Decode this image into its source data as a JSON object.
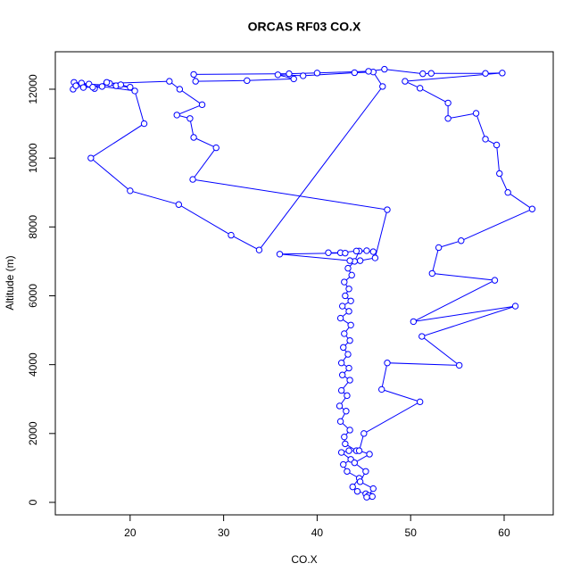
{
  "chart_data": {
    "type": "scatter",
    "title": "ORCAS RF03 CO.X",
    "xlabel": "CO.X",
    "ylabel": "Altitude (m)",
    "color": "#0000ff",
    "lines": true,
    "xlim": [
      12,
      65.25
    ],
    "ylim": [
      -363,
      13088
    ],
    "xticks": [
      20,
      30,
      40,
      50,
      60
    ],
    "yticks": [
      0,
      2000,
      4000,
      6000,
      8000,
      10000,
      12000
    ],
    "x": [
      45.8,
      45.2,
      44.3,
      43.8,
      44.5,
      43.2,
      42.8,
      43.6,
      42.6,
      43.4,
      44.2,
      43.0,
      42.9,
      43.5,
      42.5,
      43.1,
      42.4,
      43.2,
      42.6,
      43.5,
      42.7,
      43.4,
      42.6,
      43.3,
      42.8,
      43.5,
      42.9,
      43.6,
      42.5,
      43.4,
      42.7,
      43.6,
      43.0,
      43.4,
      42.9,
      43.7,
      43.3,
      44.0,
      44.5,
      45.3,
      46.0,
      44.2,
      42.5,
      41.2,
      43.0,
      36.0,
      43.5,
      44.6,
      46.2,
      47.5,
      26.7,
      29.2,
      26.8,
      26.4,
      25.0,
      27.7,
      25.3,
      24.2,
      17.8,
      16.2,
      14.0,
      15.6,
      18.5,
      20.0,
      19.0,
      17.5,
      16.0,
      14.8,
      13.9,
      14.2,
      15.0,
      17.0,
      20.5,
      21.5,
      15.8,
      20.0,
      25.2,
      30.8,
      33.8,
      47.0,
      46.0,
      44.0,
      38.5,
      35.8,
      37.5,
      32.5,
      27.0,
      26.8,
      37.0,
      40.0,
      45.5,
      47.2,
      51.3,
      52.2,
      58.0,
      59.8,
      49.4,
      51.0,
      54.0,
      54.0,
      57.0,
      58.0,
      59.2,
      59.5,
      60.4,
      63.0,
      55.4,
      53.0,
      52.3,
      59.0,
      50.3,
      61.2,
      51.2,
      55.2,
      47.5,
      46.9,
      51.0,
      45.0,
      44.5,
      45.6,
      44.0,
      45.2,
      44.6,
      46.0,
      45.5,
      45.9,
      45.3
    ],
    "values": [
      180,
      250,
      320,
      450,
      700,
      900,
      1100,
      1250,
      1450,
      1500,
      1500,
      1700,
      1900,
      2100,
      2350,
      2650,
      2800,
      3100,
      3250,
      3550,
      3700,
      3900,
      4050,
      4300,
      4500,
      4700,
      4900,
      5150,
      5350,
      5550,
      5700,
      5850,
      6000,
      6200,
      6400,
      6600,
      6800,
      7000,
      7300,
      7310,
      7280,
      7300,
      7250,
      7250,
      7240,
      7210,
      7020,
      7020,
      7100,
      8500,
      9380,
      10300,
      10600,
      11150,
      11250,
      11550,
      12000,
      12230,
      12170,
      12020,
      12200,
      12150,
      12100,
      12060,
      12130,
      12200,
      12060,
      12180,
      12000,
      12100,
      12050,
      12080,
      11950,
      11000,
      10000,
      9050,
      8650,
      7760,
      7330,
      12080,
      12500,
      12480,
      12390,
      12420,
      12300,
      12250,
      12230,
      12430,
      12450,
      12470,
      12520,
      12580,
      12450,
      12460,
      12460,
      12470,
      12230,
      12030,
      11600,
      11150,
      11300,
      10550,
      10380,
      9550,
      9000,
      8520,
      7600,
      7400,
      6650,
      6450,
      5250,
      5700,
      4820,
      3980,
      4050,
      3280,
      2920,
      2000,
      1500,
      1400,
      1150,
      900,
      600,
      400,
      200,
      170,
      150
    ]
  }
}
